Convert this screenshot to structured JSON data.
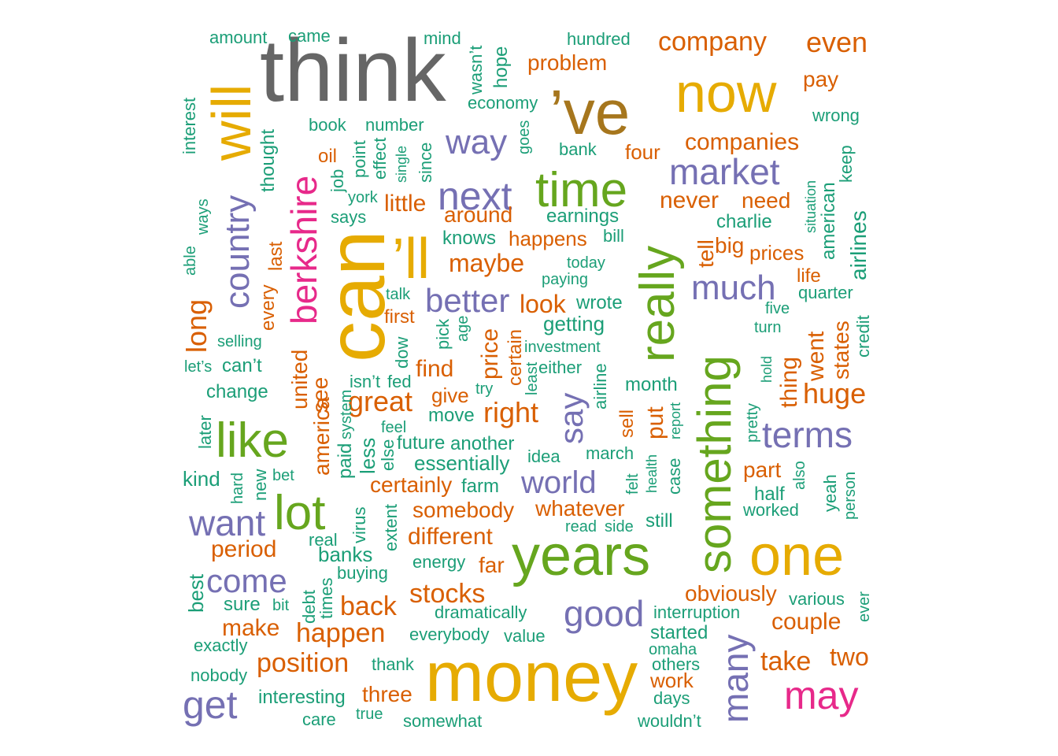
{
  "colors": {
    "dark_gray": "#666666",
    "mustard": "#e6ab02",
    "bronze": "#a6761d",
    "green": "#66a61e",
    "magenta": "#e7298a",
    "purple": "#7570b3",
    "orange": "#d95f02",
    "teal": "#1b9e77"
  },
  "chart_data": {
    "type": "wordcloud",
    "words": [
      {
        "text": "think",
        "color": "dark_gray"
      },
      {
        "text": "money",
        "color": "mustard"
      },
      {
        "text": "can",
        "color": "mustard"
      },
      {
        "text": "’ve",
        "color": "bronze"
      },
      {
        "text": "years",
        "color": "green"
      },
      {
        "text": "one",
        "color": "mustard"
      },
      {
        "text": "now",
        "color": "mustard"
      },
      {
        "text": "’ll",
        "color": "mustard"
      },
      {
        "text": "will",
        "color": "mustard"
      },
      {
        "text": "something",
        "color": "green"
      },
      {
        "text": "time",
        "color": "green"
      },
      {
        "text": "really",
        "color": "green"
      },
      {
        "text": "lot",
        "color": "green"
      },
      {
        "text": "like",
        "color": "green"
      },
      {
        "text": "berkshire",
        "color": "magenta"
      },
      {
        "text": "may",
        "color": "magenta"
      },
      {
        "text": "next",
        "color": "purple"
      },
      {
        "text": "want",
        "color": "purple"
      },
      {
        "text": "get",
        "color": "purple"
      },
      {
        "text": "good",
        "color": "purple"
      },
      {
        "text": "market",
        "color": "purple"
      },
      {
        "text": "much",
        "color": "purple"
      },
      {
        "text": "terms",
        "color": "purple"
      },
      {
        "text": "many",
        "color": "purple"
      },
      {
        "text": "country",
        "color": "purple"
      },
      {
        "text": "come",
        "color": "purple"
      },
      {
        "text": "say",
        "color": "purple"
      },
      {
        "text": "way",
        "color": "purple"
      },
      {
        "text": "better",
        "color": "purple"
      },
      {
        "text": "world",
        "color": "purple"
      },
      {
        "text": "company",
        "color": "orange"
      },
      {
        "text": "even",
        "color": "orange"
      },
      {
        "text": "companies",
        "color": "orange"
      },
      {
        "text": "problem",
        "color": "orange"
      },
      {
        "text": "pay",
        "color": "orange"
      },
      {
        "text": "four",
        "color": "orange"
      },
      {
        "text": "oil",
        "color": "orange"
      },
      {
        "text": "never",
        "color": "orange"
      },
      {
        "text": "need",
        "color": "orange"
      },
      {
        "text": "little",
        "color": "orange"
      },
      {
        "text": "around",
        "color": "orange"
      },
      {
        "text": "happens",
        "color": "orange"
      },
      {
        "text": "maybe",
        "color": "orange"
      },
      {
        "text": "big",
        "color": "orange"
      },
      {
        "text": "prices",
        "color": "orange"
      },
      {
        "text": "tell",
        "color": "orange"
      },
      {
        "text": "life",
        "color": "orange"
      },
      {
        "text": "look",
        "color": "orange"
      },
      {
        "text": "first",
        "color": "orange"
      },
      {
        "text": "long",
        "color": "orange"
      },
      {
        "text": "last",
        "color": "orange"
      },
      {
        "text": "every",
        "color": "orange"
      },
      {
        "text": "can’t",
        "color": "teal"
      },
      {
        "text": "united",
        "color": "orange"
      },
      {
        "text": "see",
        "color": "orange"
      },
      {
        "text": "america",
        "color": "orange"
      },
      {
        "text": "find",
        "color": "orange"
      },
      {
        "text": "great",
        "color": "orange"
      },
      {
        "text": "give",
        "color": "orange"
      },
      {
        "text": "price",
        "color": "orange"
      },
      {
        "text": "certain",
        "color": "orange"
      },
      {
        "text": "right",
        "color": "orange"
      },
      {
        "text": "put",
        "color": "orange"
      },
      {
        "text": "thing",
        "color": "orange"
      },
      {
        "text": "went",
        "color": "orange"
      },
      {
        "text": "states",
        "color": "orange"
      },
      {
        "text": "huge",
        "color": "orange"
      },
      {
        "text": "sell",
        "color": "orange"
      },
      {
        "text": "part",
        "color": "orange"
      },
      {
        "text": "certainly",
        "color": "orange"
      },
      {
        "text": "somebody",
        "color": "orange"
      },
      {
        "text": "whatever",
        "color": "orange"
      },
      {
        "text": "different",
        "color": "orange"
      },
      {
        "text": "period",
        "color": "orange"
      },
      {
        "text": "far",
        "color": "orange"
      },
      {
        "text": "stocks",
        "color": "orange"
      },
      {
        "text": "obviously",
        "color": "orange"
      },
      {
        "text": "back",
        "color": "orange"
      },
      {
        "text": "couple",
        "color": "orange"
      },
      {
        "text": "make",
        "color": "orange"
      },
      {
        "text": "happen",
        "color": "orange"
      },
      {
        "text": "take",
        "color": "orange"
      },
      {
        "text": "two",
        "color": "orange"
      },
      {
        "text": "position",
        "color": "orange"
      },
      {
        "text": "work",
        "color": "orange"
      },
      {
        "text": "three",
        "color": "orange"
      },
      {
        "text": "amount",
        "color": "teal"
      },
      {
        "text": "came",
        "color": "teal"
      },
      {
        "text": "mind",
        "color": "teal"
      },
      {
        "text": "wasn’t",
        "color": "teal"
      },
      {
        "text": "hope",
        "color": "teal"
      },
      {
        "text": "hundred",
        "color": "teal"
      },
      {
        "text": "economy",
        "color": "teal"
      },
      {
        "text": "wrong",
        "color": "teal"
      },
      {
        "text": "interest",
        "color": "teal"
      },
      {
        "text": "book",
        "color": "teal"
      },
      {
        "text": "number",
        "color": "teal"
      },
      {
        "text": "thought",
        "color": "teal"
      },
      {
        "text": "job",
        "color": "teal"
      },
      {
        "text": "point",
        "color": "teal"
      },
      {
        "text": "effect",
        "color": "teal"
      },
      {
        "text": "single",
        "color": "teal"
      },
      {
        "text": "since",
        "color": "teal"
      },
      {
        "text": "goes",
        "color": "teal"
      },
      {
        "text": "bank",
        "color": "teal"
      },
      {
        "text": "keep",
        "color": "teal"
      },
      {
        "text": "york",
        "color": "teal"
      },
      {
        "text": "situation",
        "color": "teal"
      },
      {
        "text": "american",
        "color": "teal"
      },
      {
        "text": "ways",
        "color": "teal"
      },
      {
        "text": "says",
        "color": "teal"
      },
      {
        "text": "earnings",
        "color": "teal"
      },
      {
        "text": "charlie",
        "color": "teal"
      },
      {
        "text": "knows",
        "color": "teal"
      },
      {
        "text": "bill",
        "color": "teal"
      },
      {
        "text": "airlines",
        "color": "teal"
      },
      {
        "text": "able",
        "color": "teal"
      },
      {
        "text": "today",
        "color": "teal"
      },
      {
        "text": "paying",
        "color": "teal"
      },
      {
        "text": "talk",
        "color": "teal"
      },
      {
        "text": "wrote",
        "color": "teal"
      },
      {
        "text": "quarter",
        "color": "teal"
      },
      {
        "text": "five",
        "color": "teal"
      },
      {
        "text": "pick",
        "color": "teal"
      },
      {
        "text": "age",
        "color": "teal"
      },
      {
        "text": "getting",
        "color": "teal"
      },
      {
        "text": "turn",
        "color": "teal"
      },
      {
        "text": "credit",
        "color": "teal"
      },
      {
        "text": "selling",
        "color": "teal"
      },
      {
        "text": "dow",
        "color": "teal"
      },
      {
        "text": "investment",
        "color": "teal"
      },
      {
        "text": "least",
        "color": "teal"
      },
      {
        "text": "either",
        "color": "teal"
      },
      {
        "text": "airline",
        "color": "teal"
      },
      {
        "text": "hold",
        "color": "teal"
      },
      {
        "text": "let’s",
        "color": "teal"
      },
      {
        "text": "isn’t",
        "color": "teal"
      },
      {
        "text": "fed",
        "color": "teal"
      },
      {
        "text": "system",
        "color": "teal"
      },
      {
        "text": "try",
        "color": "teal"
      },
      {
        "text": "month",
        "color": "teal"
      },
      {
        "text": "change",
        "color": "teal"
      },
      {
        "text": "move",
        "color": "teal"
      },
      {
        "text": "report",
        "color": "teal"
      },
      {
        "text": "pretty",
        "color": "teal"
      },
      {
        "text": "later",
        "color": "teal"
      },
      {
        "text": "feel",
        "color": "teal"
      },
      {
        "text": "future",
        "color": "teal"
      },
      {
        "text": "another",
        "color": "teal"
      },
      {
        "text": "paid",
        "color": "teal"
      },
      {
        "text": "less",
        "color": "teal"
      },
      {
        "text": "else",
        "color": "teal"
      },
      {
        "text": "idea",
        "color": "teal"
      },
      {
        "text": "march",
        "color": "teal"
      },
      {
        "text": "essentially",
        "color": "teal"
      },
      {
        "text": "felt",
        "color": "teal"
      },
      {
        "text": "health",
        "color": "teal"
      },
      {
        "text": "case",
        "color": "teal"
      },
      {
        "text": "kind",
        "color": "teal"
      },
      {
        "text": "hard",
        "color": "teal"
      },
      {
        "text": "new",
        "color": "teal"
      },
      {
        "text": "bet",
        "color": "teal"
      },
      {
        "text": "farm",
        "color": "teal"
      },
      {
        "text": "also",
        "color": "teal"
      },
      {
        "text": "yeah",
        "color": "teal"
      },
      {
        "text": "person",
        "color": "teal"
      },
      {
        "text": "half",
        "color": "teal"
      },
      {
        "text": "virus",
        "color": "teal"
      },
      {
        "text": "extent",
        "color": "teal"
      },
      {
        "text": "read",
        "color": "teal"
      },
      {
        "text": "side",
        "color": "teal"
      },
      {
        "text": "still",
        "color": "teal"
      },
      {
        "text": "worked",
        "color": "teal"
      },
      {
        "text": "real",
        "color": "teal"
      },
      {
        "text": "banks",
        "color": "teal"
      },
      {
        "text": "buying",
        "color": "teal"
      },
      {
        "text": "energy",
        "color": "teal"
      },
      {
        "text": "best",
        "color": "teal"
      },
      {
        "text": "debt",
        "color": "teal"
      },
      {
        "text": "times",
        "color": "teal"
      },
      {
        "text": "various",
        "color": "teal"
      },
      {
        "text": "ever",
        "color": "teal"
      },
      {
        "text": "sure",
        "color": "teal"
      },
      {
        "text": "bit",
        "color": "teal"
      },
      {
        "text": "dramatically",
        "color": "teal"
      },
      {
        "text": "interruption",
        "color": "teal"
      },
      {
        "text": "everybody",
        "color": "teal"
      },
      {
        "text": "value",
        "color": "teal"
      },
      {
        "text": "started",
        "color": "teal"
      },
      {
        "text": "exactly",
        "color": "teal"
      },
      {
        "text": "omaha",
        "color": "teal"
      },
      {
        "text": "thank",
        "color": "teal"
      },
      {
        "text": "others",
        "color": "teal"
      },
      {
        "text": "nobody",
        "color": "teal"
      },
      {
        "text": "interesting",
        "color": "teal"
      },
      {
        "text": "days",
        "color": "teal"
      },
      {
        "text": "care",
        "color": "teal"
      },
      {
        "text": "true",
        "color": "teal"
      },
      {
        "text": "somewhat",
        "color": "teal"
      },
      {
        "text": "wouldn’t",
        "color": "teal"
      }
    ]
  }
}
